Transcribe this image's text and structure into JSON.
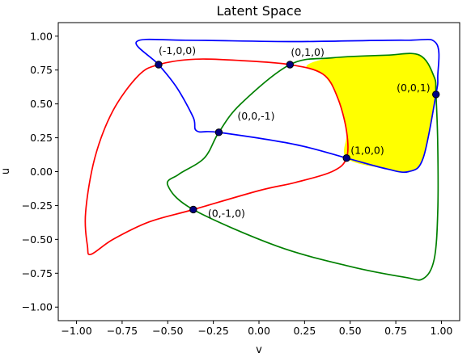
{
  "chart_data": {
    "type": "line",
    "title": "Latent Space",
    "xlabel": "v",
    "ylabel": "u",
    "xlim": [
      -1.1,
      1.1
    ],
    "ylim": [
      -1.1,
      1.1
    ],
    "x_ticks": [
      -1.0,
      -0.75,
      -0.5,
      -0.25,
      0.0,
      0.25,
      0.5,
      0.75,
      1.0
    ],
    "y_ticks": [
      -1.0,
      -0.75,
      -0.5,
      -0.25,
      0.0,
      0.25,
      0.5,
      0.75,
      1.0
    ],
    "x_tick_labels": [
      "−1.00",
      "−0.75",
      "−0.50",
      "−0.25",
      "0.00",
      "0.25",
      "0.50",
      "0.75",
      "1.00"
    ],
    "y_tick_labels": [
      "−1.00",
      "−0.75",
      "−0.50",
      "−0.25",
      "0.00",
      "0.25",
      "0.50",
      "0.75",
      "1.00"
    ],
    "grid": false,
    "points": [
      {
        "label": "(-1,0,0)",
        "x": -0.55,
        "y": 0.79
      },
      {
        "label": "(0,1,0)",
        "x": 0.17,
        "y": 0.79
      },
      {
        "label": "(0,0,1)",
        "x": 0.97,
        "y": 0.57
      },
      {
        "label": "(0,0,-1)",
        "x": -0.22,
        "y": 0.29
      },
      {
        "label": "(1,0,0)",
        "x": 0.48,
        "y": 0.1
      },
      {
        "label": "(0,-1,0)",
        "x": -0.36,
        "y": -0.28
      }
    ],
    "curves": [
      {
        "color": "#ff0000",
        "closed": true,
        "points": [
          [
            -0.55,
            0.79
          ],
          [
            -0.35,
            0.83
          ],
          [
            -0.1,
            0.82
          ],
          [
            0.17,
            0.79
          ],
          [
            0.35,
            0.72
          ],
          [
            0.43,
            0.55
          ],
          [
            0.48,
            0.3
          ],
          [
            0.48,
            0.1
          ],
          [
            0.4,
            0.0
          ],
          [
            0.2,
            -0.08
          ],
          [
            0.0,
            -0.14
          ],
          [
            -0.36,
            -0.28
          ],
          [
            -0.6,
            -0.37
          ],
          [
            -0.8,
            -0.5
          ],
          [
            -0.92,
            -0.61
          ],
          [
            -0.94,
            -0.55
          ],
          [
            -0.95,
            -0.3
          ],
          [
            -0.9,
            0.1
          ],
          [
            -0.8,
            0.45
          ],
          [
            -0.66,
            0.71
          ],
          [
            -0.55,
            0.79
          ]
        ]
      },
      {
        "color": "#008000",
        "closed": true,
        "points": [
          [
            0.17,
            0.79
          ],
          [
            0.4,
            0.84
          ],
          [
            0.7,
            0.86
          ],
          [
            0.88,
            0.86
          ],
          [
            0.96,
            0.7
          ],
          [
            0.97,
            0.57
          ],
          [
            0.98,
            0.2
          ],
          [
            0.98,
            -0.3
          ],
          [
            0.96,
            -0.65
          ],
          [
            0.9,
            -0.79
          ],
          [
            0.8,
            -0.78
          ],
          [
            0.5,
            -0.7
          ],
          [
            0.1,
            -0.55
          ],
          [
            -0.36,
            -0.28
          ],
          [
            -0.5,
            -0.1
          ],
          [
            -0.44,
            -0.02
          ],
          [
            -0.3,
            0.1
          ],
          [
            -0.22,
            0.29
          ],
          [
            -0.1,
            0.5
          ],
          [
            0.17,
            0.79
          ]
        ]
      },
      {
        "color": "#0000ff",
        "closed": true,
        "points": [
          [
            -0.55,
            0.79
          ],
          [
            -0.67,
            0.96
          ],
          [
            -0.4,
            0.97
          ],
          [
            0.2,
            0.96
          ],
          [
            0.8,
            0.97
          ],
          [
            0.97,
            0.95
          ],
          [
            0.98,
            0.7
          ],
          [
            0.97,
            0.57
          ],
          [
            0.9,
            0.1
          ],
          [
            0.82,
            0.0
          ],
          [
            0.7,
            0.02
          ],
          [
            0.48,
            0.1
          ],
          [
            0.2,
            0.2
          ],
          [
            -0.22,
            0.29
          ],
          [
            -0.34,
            0.3
          ],
          [
            -0.36,
            0.4
          ],
          [
            -0.45,
            0.62
          ],
          [
            -0.55,
            0.79
          ]
        ]
      }
    ],
    "filled_region": {
      "color": "#ffff00",
      "points": [
        [
          0.26,
          0.78
        ],
        [
          0.4,
          0.84
        ],
        [
          0.7,
          0.86
        ],
        [
          0.88,
          0.86
        ],
        [
          0.96,
          0.7
        ],
        [
          0.97,
          0.57
        ],
        [
          0.93,
          0.25
        ],
        [
          0.88,
          0.05
        ],
        [
          0.82,
          0.0
        ],
        [
          0.7,
          0.02
        ],
        [
          0.48,
          0.1
        ],
        [
          0.48,
          0.3
        ],
        [
          0.43,
          0.55
        ],
        [
          0.35,
          0.72
        ],
        [
          0.26,
          0.78
        ]
      ]
    }
  }
}
